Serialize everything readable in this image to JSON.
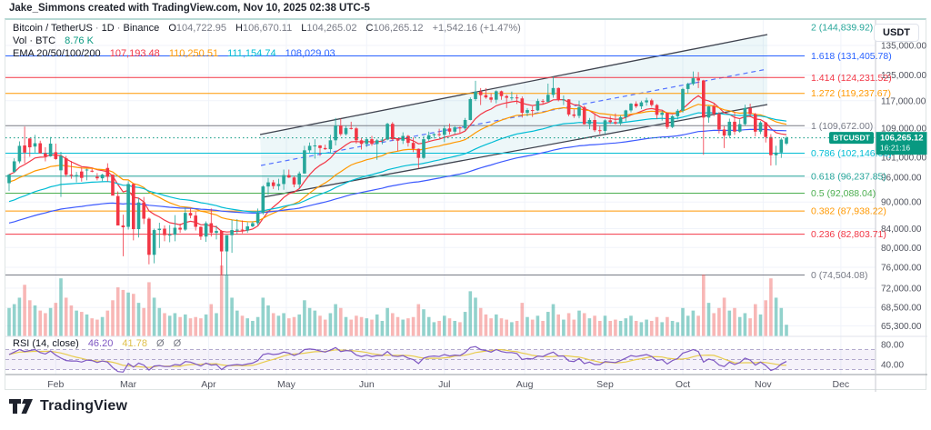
{
  "attribution": "Jake_Simmons created with TradingView.com, Nov 10, 2025 02:38 UTC-5",
  "header": {
    "symbol": "Bitcoin / TetherUS",
    "sep1": "·",
    "interval": "1D",
    "sep2": "·",
    "exchange": "Binance",
    "o_label": "O",
    "o": "104,722.95",
    "h_label": "H",
    "h": "106,670.11",
    "l_label": "L",
    "l": "104,265.02",
    "c_label": "C",
    "c": "106,265.12",
    "change": "+1,542.16 (+1.47%)",
    "vol_label": "Vol · BTC",
    "vol_value": "8.76 K",
    "ema_label": "EMA 20/50/100/200",
    "ema20": "107,193.48",
    "ema50": "110,250.51",
    "ema100": "111,154.74",
    "ema200": "108,029.03"
  },
  "rsi_legend": {
    "label": "RSI (14, close)",
    "value": "46.20",
    "ma_value": "41.78",
    "empty1": "Ø",
    "empty2": "Ø"
  },
  "price_axis": {
    "currency": "USDT",
    "symbol_badge": "BTCUSDT",
    "last_price": "106,265.12",
    "countdown": "16:21:16",
    "ticks": [
      {
        "p": 135000,
        "label": "135,000.00"
      },
      {
        "p": 125000,
        "label": "125,000.00"
      },
      {
        "p": 117000,
        "label": "117,000.00"
      },
      {
        "p": 109000,
        "label": "109,000.00"
      },
      {
        "p": 101000,
        "label": "101,000.00"
      },
      {
        "p": 96000,
        "label": "96,000.00"
      },
      {
        "p": 90000,
        "label": "90,000.00"
      },
      {
        "p": 84000,
        "label": "84,000.00"
      },
      {
        "p": 80000,
        "label": "80,000.00"
      },
      {
        "p": 76000,
        "label": "76,000.00"
      },
      {
        "p": 72000,
        "label": "72,000.00"
      },
      {
        "p": 68500,
        "label": "68,500.00"
      },
      {
        "p": 65300,
        "label": "65,300.00"
      }
    ],
    "rsi_ticks": [
      {
        "v": 80,
        "label": "80.00"
      },
      {
        "v": 40,
        "label": "40.00"
      }
    ]
  },
  "footer_brand": "TradingView",
  "chart_data": {
    "type": "candlestick",
    "title": "Bitcoin / TetherUS · 1D · Binance",
    "price_scale": "logarithmic",
    "ylim": [
      63550,
      144200
    ],
    "x_start_date": "2025-01-14",
    "x_step_days": 2,
    "unit": "kUSD",
    "months": [
      {
        "label": "Feb",
        "bar": 9
      },
      {
        "label": "Mar",
        "bar": 23
      },
      {
        "label": "Apr",
        "bar": 38.5
      },
      {
        "label": "May",
        "bar": 53.5
      },
      {
        "label": "Jun",
        "bar": 69
      },
      {
        "label": "Jul",
        "bar": 84
      },
      {
        "label": "Aug",
        "bar": 99.5
      },
      {
        "label": "Sep",
        "bar": 115
      },
      {
        "label": "Oct",
        "bar": 130
      },
      {
        "label": "Nov",
        "bar": 145.5
      },
      {
        "label": "Dec",
        "bar": 160.5
      }
    ],
    "candles": [
      [
        94.5,
        96.8,
        92.6,
        96.6
      ],
      [
        97.3,
        100.8,
        97.0,
        100.0
      ],
      [
        100.0,
        105.3,
        99.5,
        104.1
      ],
      [
        104.2,
        109.4,
        99.5,
        102.3
      ],
      [
        106.1,
        106.3,
        101.2,
        103.7
      ],
      [
        103.9,
        107.1,
        102.3,
        104.8
      ],
      [
        104.8,
        105.5,
        102.5,
        102.1
      ],
      [
        102.1,
        103.7,
        100.0,
        101.3
      ],
      [
        101.3,
        106.5,
        101.2,
        104.7
      ],
      [
        102.4,
        104.7,
        100.4,
        100.6
      ],
      [
        97.7,
        102.5,
        91.2,
        101.4
      ],
      [
        100.8,
        101.4,
        96.1,
        96.6
      ],
      [
        96.6,
        100.1,
        95.6,
        96.5
      ],
      [
        96.5,
        97.3,
        94.7,
        96.5
      ],
      [
        97.4,
        98.4,
        94.9,
        95.8
      ],
      [
        97.7,
        98.1,
        95.2,
        97.9
      ],
      [
        97.6,
        98.1,
        97.2,
        97.5
      ],
      [
        96.1,
        97.0,
        95.2,
        95.7
      ],
      [
        95.7,
        96.8,
        95.0,
        96.6
      ],
      [
        98.3,
        99.5,
        94.9,
        96.1
      ],
      [
        96.6,
        96.7,
        91.9,
        91.5
      ],
      [
        91.4,
        92.5,
        86.0,
        84.7
      ],
      [
        84.7,
        87.1,
        78.2,
        84.3
      ],
      [
        84.4,
        95.0,
        83.8,
        94.3
      ],
      [
        94.3,
        94.4,
        81.5,
        83.9
      ],
      [
        83.9,
        91.0,
        82.1,
        89.9
      ],
      [
        89.9,
        91.2,
        85.0,
        86.2
      ],
      [
        86.2,
        86.5,
        76.6,
        78.5
      ],
      [
        78.5,
        84.0,
        76.8,
        83.7
      ],
      [
        83.7,
        85.3,
        79.9,
        84.0
      ],
      [
        84.0,
        84.7,
        81.3,
        82.6
      ],
      [
        82.6,
        84.8,
        81.1,
        82.7
      ],
      [
        82.7,
        87.0,
        81.3,
        84.2
      ],
      [
        84.2,
        85.1,
        83.1,
        83.8
      ],
      [
        83.8,
        88.8,
        83.5,
        87.5
      ],
      [
        87.5,
        88.5,
        86.3,
        86.9
      ],
      [
        86.9,
        87.8,
        83.6,
        84.4
      ],
      [
        84.4,
        84.5,
        81.6,
        82.3
      ],
      [
        82.3,
        85.6,
        81.2,
        85.2
      ],
      [
        85.2,
        88.5,
        82.3,
        83.1
      ],
      [
        83.1,
        84.7,
        81.7,
        83.5
      ],
      [
        83.5,
        83.7,
        74.5,
        79.2
      ],
      [
        79.2,
        80.8,
        74.6,
        82.6
      ],
      [
        82.6,
        86.0,
        78.9,
        83.7
      ],
      [
        83.7,
        86.1,
        82.8,
        83.8
      ],
      [
        83.8,
        85.8,
        83.0,
        83.6
      ],
      [
        83.6,
        85.4,
        83.1,
        84.5
      ],
      [
        84.5,
        85.6,
        84.3,
        85.2
      ],
      [
        85.2,
        88.5,
        84.7,
        87.5
      ],
      [
        87.5,
        94.0,
        87.1,
        93.7
      ],
      [
        93.7,
        95.8,
        91.7,
        94.7
      ],
      [
        94.7,
        95.3,
        93.1,
        93.8
      ],
      [
        93.8,
        95.6,
        92.8,
        94.3
      ],
      [
        94.3,
        97.9,
        92.9,
        96.5
      ],
      [
        96.5,
        97.9,
        95.8,
        95.9
      ],
      [
        95.9,
        96.3,
        93.5,
        94.2
      ],
      [
        94.2,
        97.4,
        93.3,
        96.9
      ],
      [
        96.9,
        104.1,
        96.8,
        102.9
      ],
      [
        102.9,
        105.0,
        102.3,
        104.1
      ],
      [
        104.1,
        105.9,
        100.7,
        104.2
      ],
      [
        104.2,
        104.3,
        101.4,
        103.5
      ],
      [
        103.5,
        104.4,
        103.0,
        103.2
      ],
      [
        103.2,
        107.1,
        102.1,
        105.6
      ],
      [
        105.6,
        111.9,
        104.2,
        109.7
      ],
      [
        109.7,
        111.7,
        106.8,
        107.3
      ],
      [
        107.3,
        109.7,
        106.9,
        109.0
      ],
      [
        109.0,
        110.8,
        108.6,
        108.9
      ],
      [
        108.9,
        109.3,
        104.7,
        105.6
      ],
      [
        105.6,
        106.3,
        103.1,
        104.6
      ],
      [
        104.6,
        106.3,
        103.8,
        105.9
      ],
      [
        105.9,
        106.8,
        104.1,
        104.6
      ],
      [
        104.6,
        106.0,
        100.4,
        105.6
      ],
      [
        105.6,
        106.3,
        104.5,
        105.8
      ],
      [
        105.8,
        110.5,
        105.6,
        110.2
      ],
      [
        110.2,
        110.7,
        105.4,
        105.9
      ],
      [
        105.9,
        106.2,
        102.7,
        105.5
      ],
      [
        105.5,
        107.8,
        104.6,
        106.8
      ],
      [
        106.8,
        107.1,
        103.9,
        104.9
      ],
      [
        104.9,
        106.4,
        102.4,
        103.3
      ],
      [
        103.3,
        103.4,
        98.2,
        100.9
      ],
      [
        100.9,
        106.8,
        100.6,
        105.9
      ],
      [
        105.9,
        108.0,
        105.4,
        107.0
      ],
      [
        107.0,
        107.5,
        106.1,
        107.3
      ],
      [
        107.3,
        108.8,
        106.6,
        107.1
      ],
      [
        107.1,
        109.7,
        105.1,
        108.9
      ],
      [
        108.9,
        110.3,
        107.2,
        108.0
      ],
      [
        108.0,
        109.6,
        107.3,
        109.2
      ],
      [
        109.2,
        109.4,
        107.5,
        108.9
      ],
      [
        108.9,
        111.9,
        108.3,
        111.3
      ],
      [
        111.3,
        118.0,
        111.2,
        117.5
      ],
      [
        117.5,
        123.2,
        116.9,
        119.8
      ],
      [
        119.8,
        120.9,
        115.7,
        118.7
      ],
      [
        118.7,
        120.9,
        117.6,
        118.0
      ],
      [
        118.0,
        119.3,
        116.5,
        117.3
      ],
      [
        117.3,
        120.2,
        116.2,
        119.9
      ],
      [
        119.9,
        120.1,
        117.3,
        118.4
      ],
      [
        118.4,
        118.8,
        114.8,
        117.9
      ],
      [
        117.9,
        119.8,
        117.1,
        118.0
      ],
      [
        118.0,
        118.9,
        116.0,
        117.7
      ],
      [
        117.7,
        118.3,
        112.0,
        113.4
      ],
      [
        113.4,
        114.8,
        112.4,
        114.2
      ],
      [
        114.2,
        115.3,
        112.2,
        114.1
      ],
      [
        114.1,
        117.6,
        113.9,
        116.9
      ],
      [
        116.9,
        117.5,
        115.8,
        116.7
      ],
      [
        116.7,
        122.3,
        116.5,
        118.8
      ],
      [
        118.8,
        124.5,
        117.9,
        120.9
      ],
      [
        120.9,
        121.1,
        116.8,
        117.4
      ],
      [
        117.4,
        118.6,
        115.7,
        117.4
      ],
      [
        117.4,
        117.5,
        112.4,
        112.9
      ],
      [
        112.9,
        114.4,
        111.9,
        112.5
      ],
      [
        112.5,
        117.0,
        111.8,
        115.1
      ],
      [
        115.1,
        115.5,
        110.0,
        110.1
      ],
      [
        110.1,
        111.9,
        108.7,
        111.3
      ],
      [
        111.3,
        113.3,
        107.9,
        108.4
      ],
      [
        108.4,
        109.5,
        107.3,
        108.2
      ],
      [
        108.2,
        111.5,
        107.3,
        111.2
      ],
      [
        111.2,
        112.5,
        110.2,
        110.7
      ],
      [
        110.7,
        113.2,
        110.0,
        110.3
      ],
      [
        110.3,
        112.6,
        109.8,
        112.1
      ],
      [
        112.1,
        114.3,
        110.9,
        114.1
      ],
      [
        114.1,
        116.3,
        113.5,
        116.1
      ],
      [
        116.1,
        116.8,
        114.8,
        115.3
      ],
      [
        115.3,
        117.0,
        114.5,
        116.5
      ],
      [
        116.5,
        117.9,
        115.5,
        117.1
      ],
      [
        117.1,
        117.6,
        115.2,
        115.7
      ],
      [
        115.7,
        116.0,
        111.6,
        112.8
      ],
      [
        112.8,
        114.0,
        111.1,
        113.4
      ],
      [
        113.4,
        113.5,
        108.7,
        109.3
      ],
      [
        109.3,
        112.7,
        109.0,
        112.4
      ],
      [
        112.4,
        114.5,
        111.5,
        114.0
      ],
      [
        114.0,
        121.0,
        113.4,
        120.6
      ],
      [
        120.6,
        122.6,
        119.2,
        122.2
      ],
      [
        122.2,
        126.2,
        121.7,
        124.0
      ],
      [
        124.0,
        126.0,
        120.9,
        123.3
      ],
      [
        123.3,
        123.5,
        101.7,
        112.0
      ],
      [
        112.0,
        115.4,
        110.5,
        115.3
      ],
      [
        115.3,
        116.0,
        112.4,
        113.1
      ],
      [
        113.1,
        113.6,
        107.5,
        108.6
      ],
      [
        108.6,
        109.5,
        103.5,
        106.9
      ],
      [
        106.9,
        111.7,
        106.3,
        110.8
      ],
      [
        110.8,
        113.6,
        107.1,
        108.0
      ],
      [
        108.0,
        111.5,
        107.7,
        110.1
      ],
      [
        110.1,
        115.8,
        109.6,
        114.8
      ],
      [
        114.8,
        116.1,
        112.1,
        113.0
      ],
      [
        113.0,
        113.4,
        106.7,
        108.0
      ],
      [
        108.0,
        111.0,
        107.3,
        110.6
      ],
      [
        110.6,
        110.7,
        105.0,
        106.5
      ],
      [
        106.5,
        107.3,
        98.9,
        101.6
      ],
      [
        101.6,
        104.1,
        99.0,
        102.3
      ],
      [
        102.3,
        106.3,
        100.9,
        105.8
      ],
      [
        104.7,
        106.7,
        104.3,
        106.3
      ]
    ],
    "volume_k": [
      22,
      25,
      30,
      40,
      28,
      24,
      20,
      18,
      22,
      26,
      45,
      30,
      24,
      20,
      19,
      17,
      14,
      13,
      15,
      20,
      28,
      38,
      36,
      34,
      33,
      26,
      22,
      42,
      30,
      22,
      18,
      16,
      18,
      15,
      17,
      14,
      15,
      14,
      17,
      25,
      18,
      55,
      48,
      30,
      20,
      16,
      14,
      12,
      15,
      30,
      24,
      18,
      16,
      18,
      14,
      15,
      17,
      28,
      22,
      20,
      16,
      13,
      18,
      25,
      22,
      15,
      13,
      16,
      15,
      14,
      13,
      17,
      12,
      22,
      18,
      15,
      13,
      14,
      15,
      25,
      21,
      15,
      11,
      12,
      16,
      14,
      12,
      11,
      19,
      35,
      30,
      22,
      17,
      14,
      17,
      14,
      13,
      11,
      12,
      26,
      15,
      13,
      16,
      12,
      19,
      25,
      17,
      13,
      18,
      13,
      20,
      18,
      14,
      16,
      12,
      16,
      12,
      13,
      12,
      14,
      16,
      12,
      11,
      13,
      12,
      15,
      11,
      15,
      12,
      11,
      22,
      16,
      20,
      16,
      48,
      26,
      18,
      22,
      30,
      20,
      22,
      15,
      18,
      14,
      25,
      17,
      28,
      45,
      30,
      22,
      9
    ],
    "rsi": [
      60,
      65,
      70,
      66,
      68,
      70,
      64,
      61,
      67,
      59,
      53,
      48,
      47,
      47,
      45,
      49,
      48,
      44,
      47,
      45,
      34,
      26,
      25,
      42,
      35,
      43,
      39,
      29,
      37,
      38,
      36,
      36,
      40,
      39,
      46,
      45,
      41,
      37,
      43,
      39,
      40,
      30,
      37,
      39,
      40,
      39,
      41,
      43,
      48,
      60,
      62,
      60,
      61,
      65,
      63,
      58,
      62,
      70,
      71,
      70,
      67,
      65,
      69,
      74,
      66,
      68,
      67,
      59,
      56,
      59,
      56,
      58,
      58,
      66,
      57,
      56,
      58,
      53,
      50,
      42,
      53,
      56,
      57,
      56,
      60,
      57,
      59,
      58,
      64,
      74,
      76,
      70,
      68,
      65,
      70,
      66,
      64,
      64,
      62,
      50,
      52,
      51,
      57,
      56,
      61,
      65,
      57,
      57,
      47,
      46,
      52,
      42,
      45,
      40,
      40,
      46,
      45,
      44,
      48,
      53,
      58,
      56,
      58,
      60,
      56,
      48,
      50,
      41,
      48,
      52,
      63,
      66,
      70,
      66,
      45,
      51,
      48,
      39,
      36,
      45,
      40,
      44,
      53,
      49,
      39,
      45,
      38,
      28,
      32,
      41,
      46.2
    ],
    "rsi_levels": {
      "upper": 70,
      "middle": 50,
      "lower": 30
    },
    "ema_periods_days": [
      20,
      50,
      100,
      200
    ],
    "fib_levels": [
      {
        "label": "2 (144,839.92)",
        "price": 144839.92,
        "color": "#26a69a"
      },
      {
        "label": "1.618 (131,405.78)",
        "price": 131405.78,
        "color": "#2962ff"
      },
      {
        "label": "1.414 (124,231.52)",
        "price": 124231.52,
        "color": "#f23645"
      },
      {
        "label": "1.272 (119,237.67)",
        "price": 119237.67,
        "color": "#ff9800"
      },
      {
        "label": "1 (109,672.00)",
        "price": 109672.0,
        "color": "#787b86"
      },
      {
        "label": "0.786 (102,146.06)",
        "price": 102146.06,
        "color": "#00bcd4"
      },
      {
        "label": "0.618 (96,237.85)",
        "price": 96237.85,
        "color": "#26a69a"
      },
      {
        "label": "0.5 (92,088.04)",
        "price": 92088.04,
        "color": "#4caf50"
      },
      {
        "label": "0.382 (87,938.22)",
        "price": 87938.22,
        "color": "#ff9800"
      },
      {
        "label": "0.236 (82,803.71)",
        "price": 82803.71,
        "color": "#f23645"
      },
      {
        "label": "0 (74,504.08)",
        "price": 74504.08,
        "color": "#787b86"
      }
    ],
    "channel": {
      "upper": [
        280,
        126,
        838,
        16
      ],
      "lower": [
        283,
        195,
        838,
        93
      ],
      "middle": [
        281,
        160,
        838,
        54
      ],
      "line_color": "#3f434f",
      "middle_color": "#5472ff",
      "fill": "rgba(56,165,190,0.09)"
    },
    "last_price": 106265.12,
    "colors": {
      "up": "#26a69a",
      "down": "#f23645",
      "vol_up": "rgba(38,166,154,0.5)",
      "vol_down": "rgba(239,83,80,0.42)",
      "ema": [
        "#f23645",
        "#ff9800",
        "#00bcd4",
        "#3d5afe"
      ],
      "price_line": "#089981",
      "badge": "#089981",
      "rsi": "#7e57c2",
      "rsi_ma": "#e8cc4f",
      "rsi_band": "rgba(126,87,194,0.08)",
      "rsi_dash": "#9b90bf",
      "grid": "#f0f3fa",
      "axis_text": "#50535e",
      "separator": "#e0e3eb",
      "axis_line": "#9598a1"
    }
  }
}
